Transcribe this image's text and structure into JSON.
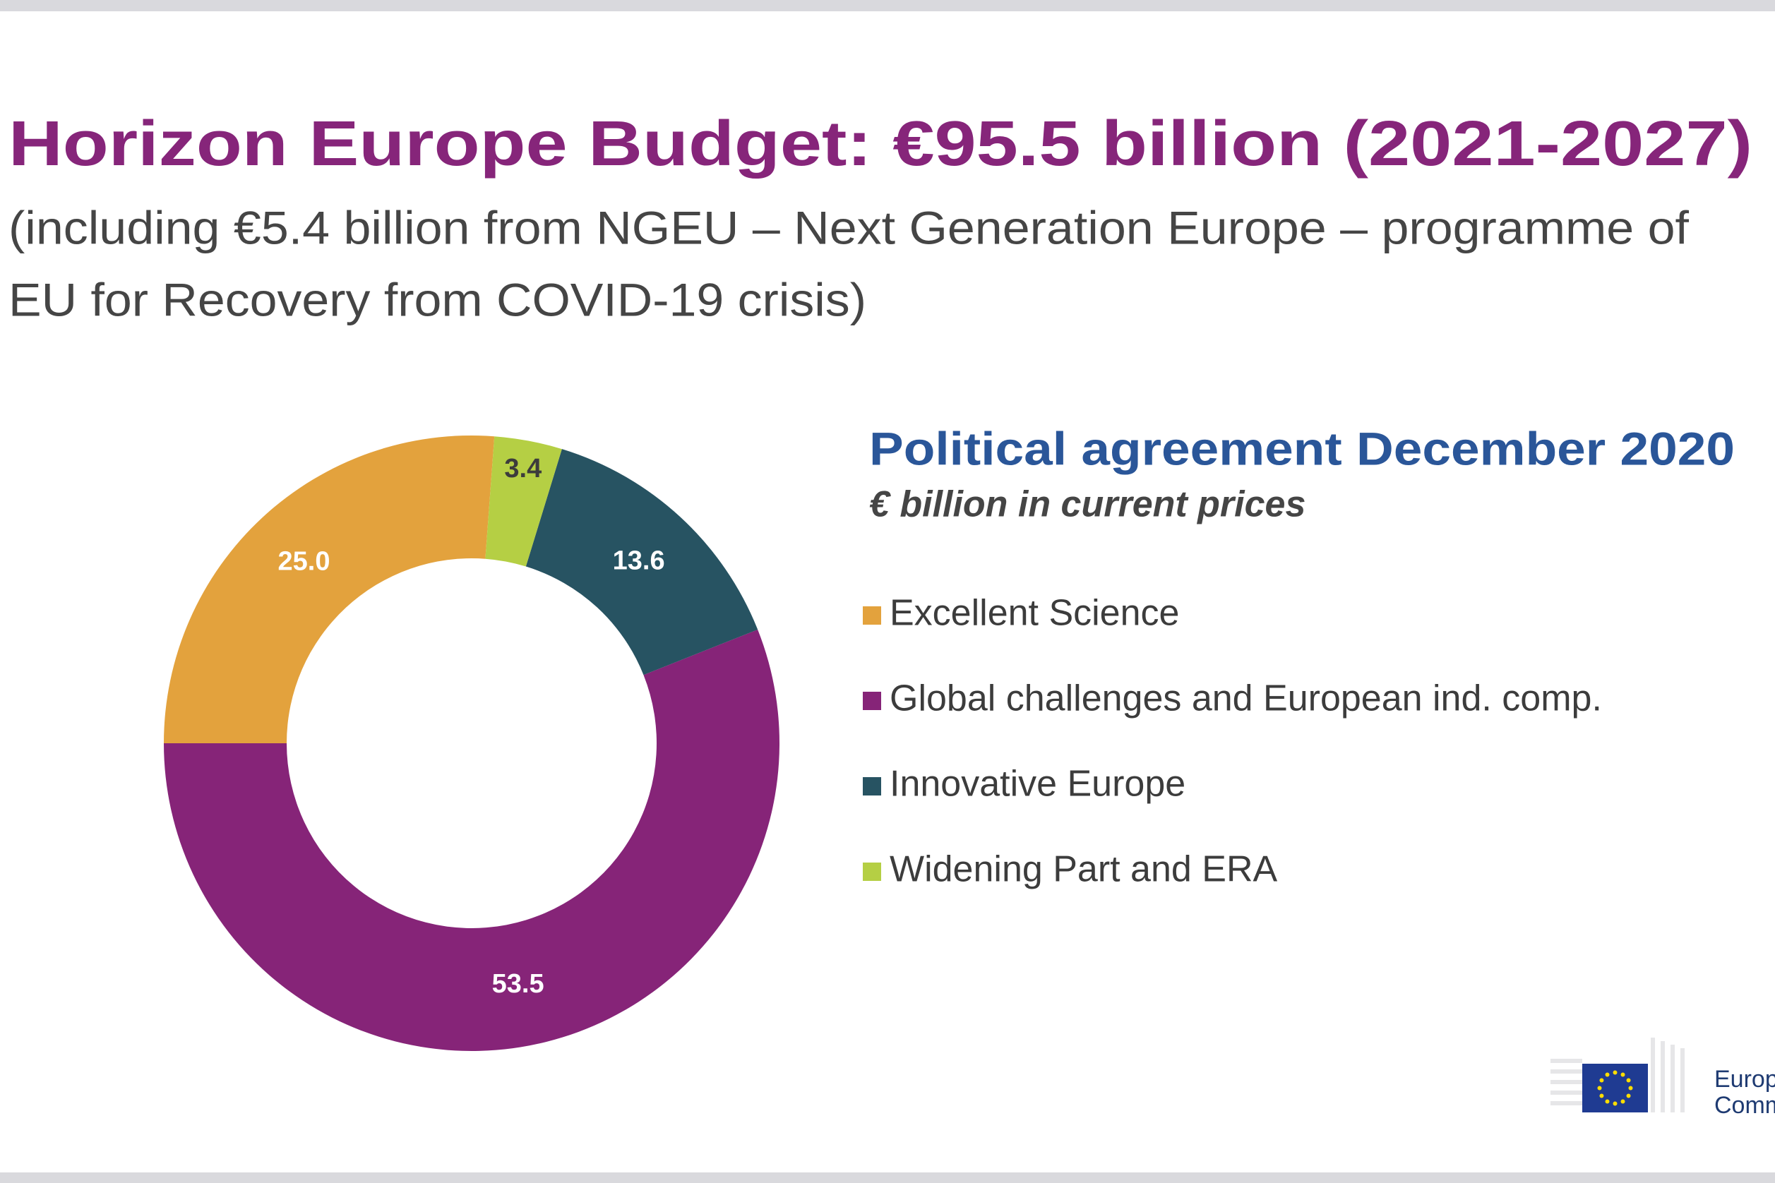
{
  "header": {
    "title": "Horizon Europe Budget: €95.5 billion (2021-2027)",
    "subtitle_lines": [
      "(including €5.4 billion from NGEU – Next Generation Europe – programme of",
      "EU for Recovery from COVID-19 crisis)"
    ]
  },
  "chart_data": {
    "type": "donut",
    "title": "Political agreement December 2020",
    "subtitle": "€ billion in current prices",
    "categories": [
      "Excellent Science",
      "Global challenges and European ind. comp.",
      "Innovative Europe",
      "Widening Part and ERA"
    ],
    "values": [
      25.0,
      53.5,
      13.6,
      3.4
    ],
    "value_labels": [
      "25.0",
      "53.5",
      "13.6",
      "3.4"
    ],
    "colors": [
      "#e3a23d",
      "#862478",
      "#275362",
      "#b5cf44"
    ]
  },
  "logo": {
    "lines": [
      "European",
      "Commission"
    ]
  }
}
